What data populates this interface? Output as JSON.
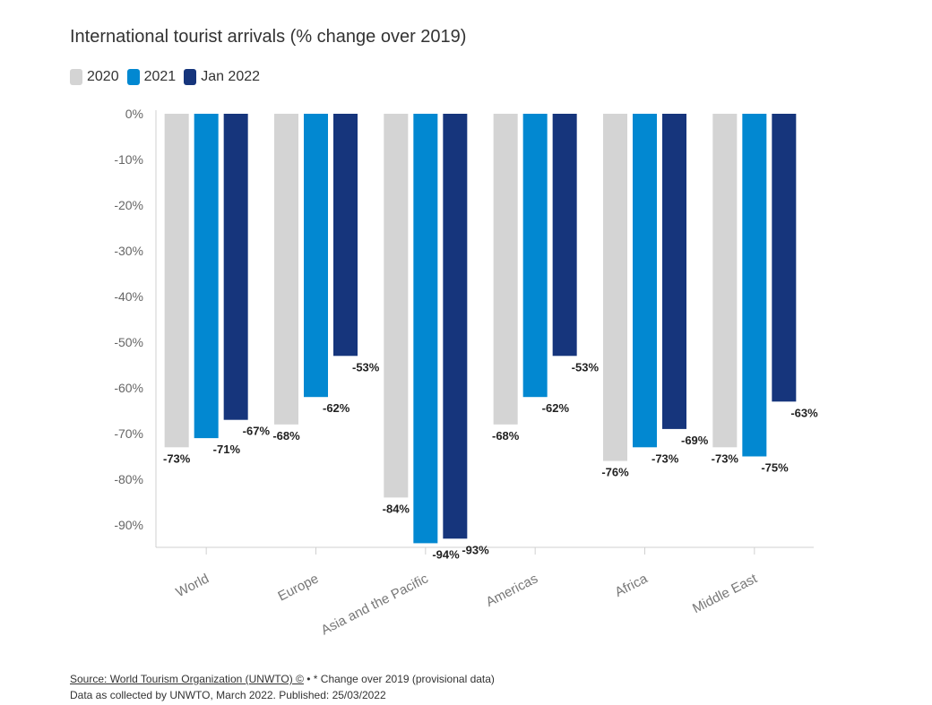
{
  "title": "International tourist arrivals (% change over 2019)",
  "legend": [
    {
      "label": "2020",
      "color": "#d4d4d4"
    },
    {
      "label": "2021",
      "color": "#0288d1"
    },
    {
      "label": "Jan 2022",
      "color": "#16357c"
    }
  ],
  "footer": {
    "source": "Source: World Tourism Organization (UNWTO) ©",
    "note": " • * Change over 2019 (provisional data)",
    "line2": "Data as collected by UNWTO, March 2022. Published: 25/03/2022"
  },
  "chart_data": {
    "type": "bar",
    "title": "International tourist arrivals (% change over 2019)",
    "categories": [
      "World",
      "Europe",
      "Asia and the Pacific",
      "Americas",
      "Africa",
      "Middle East"
    ],
    "series": [
      {
        "name": "2020",
        "color": "#d4d4d4",
        "values": [
          -73,
          -68,
          -84,
          -68,
          -76,
          -73
        ]
      },
      {
        "name": "2021",
        "color": "#0288d1",
        "values": [
          -71,
          -62,
          -94,
          -62,
          -73,
          -75
        ]
      },
      {
        "name": "Jan 2022",
        "color": "#16357c",
        "values": [
          -67,
          -53,
          -93,
          -53,
          -69,
          -63
        ]
      }
    ],
    "yticks": [
      "0%",
      "-10%",
      "-20%",
      "-30%",
      "-40%",
      "-50%",
      "-60%",
      "-70%",
      "-80%",
      "-90%"
    ],
    "ylim": [
      -95,
      0
    ],
    "legend_position": "top-left",
    "grid": false
  }
}
